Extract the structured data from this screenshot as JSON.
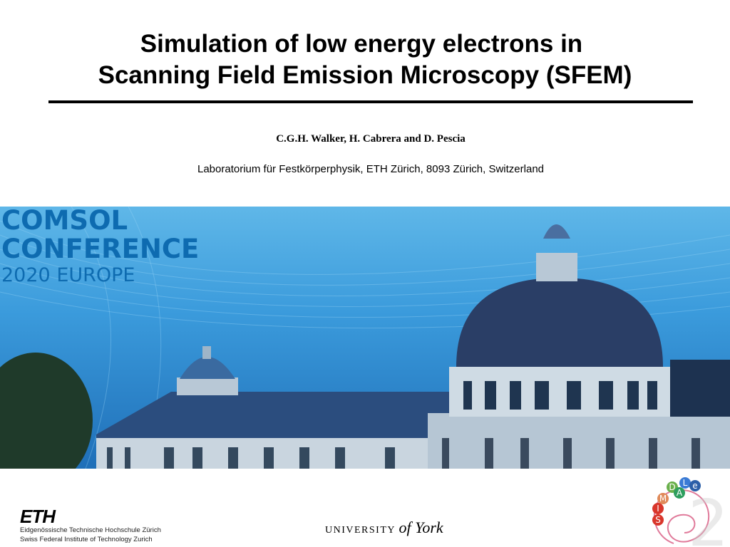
{
  "slide": {
    "title_line1": "Simulation of low energy electrons in",
    "title_line2": "Scanning Field Emission Microscopy (SFEM)",
    "authors": "C.G.H. Walker, H. Cabrera and D. Pescia",
    "affiliation": "Laboratorium für Festkörperphysik, ETH Zürich, 8093 Zürich, Switzerland"
  },
  "banner": {
    "line1": "COMSOL",
    "line2": "CONFERENCE",
    "year": "2020",
    "region": "EUROPE",
    "brand_color": "#0e6bb0"
  },
  "logos": {
    "eth_logo": "ETH",
    "eth_line1": "Eidgenössische Technische Hochschule Zürich",
    "eth_line2": "Swiss Federal Institute of Technology Zurich",
    "york_prefix": "UNIVERSITY",
    "york_name": "of York",
    "dlae_letters": [
      "D",
      "L",
      "A",
      "e",
      "M",
      "I",
      "S"
    ]
  }
}
